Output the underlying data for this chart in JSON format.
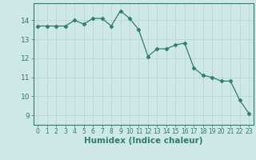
{
  "x": [
    0,
    1,
    2,
    3,
    4,
    5,
    6,
    7,
    8,
    9,
    10,
    11,
    12,
    13,
    14,
    15,
    16,
    17,
    18,
    19,
    20,
    21,
    22,
    23
  ],
  "y": [
    13.7,
    13.7,
    13.7,
    13.7,
    14.0,
    13.8,
    14.1,
    14.1,
    13.7,
    14.5,
    14.1,
    13.5,
    12.1,
    12.5,
    12.5,
    12.7,
    12.8,
    11.5,
    11.1,
    11.0,
    10.8,
    10.8,
    9.8,
    9.1
  ],
  "line_color": "#2e7d6e",
  "marker": "D",
  "marker_size": 2.5,
  "bg_color": "#cde8e6",
  "grid_color": "#b8d8d5",
  "tick_color": "#2e7d6e",
  "xlabel": "Humidex (Indice chaleur)",
  "xlabel_fontsize": 7.5,
  "ylim": [
    8.5,
    14.9
  ],
  "yticks": [
    9,
    10,
    11,
    12,
    13,
    14
  ],
  "xticks": [
    0,
    1,
    2,
    3,
    4,
    5,
    6,
    7,
    8,
    9,
    10,
    11,
    12,
    13,
    14,
    15,
    16,
    17,
    18,
    19,
    20,
    21,
    22,
    23
  ]
}
